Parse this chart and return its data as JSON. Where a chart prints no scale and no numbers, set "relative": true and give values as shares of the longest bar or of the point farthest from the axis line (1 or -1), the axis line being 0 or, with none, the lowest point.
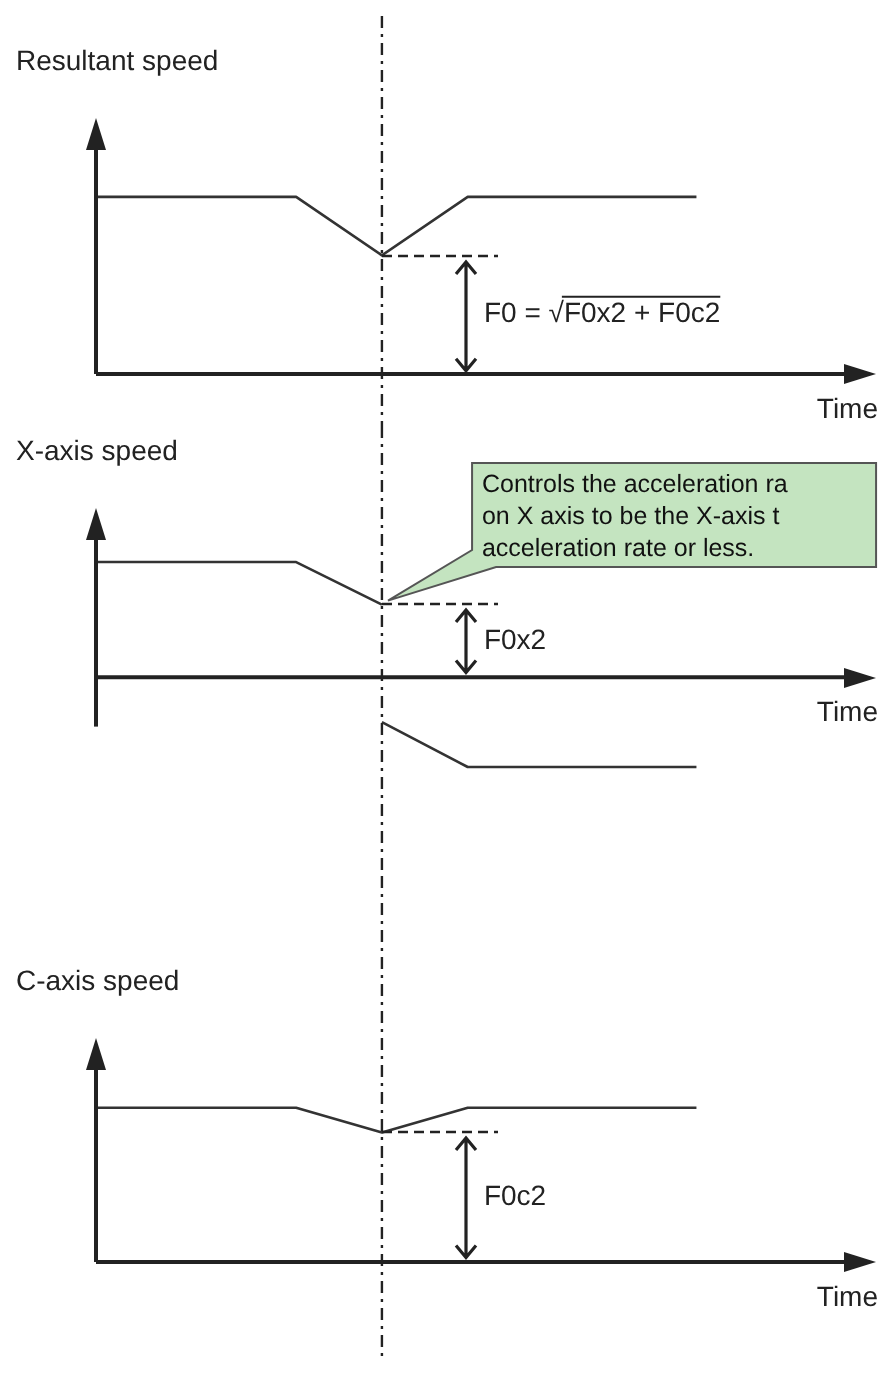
{
  "chart_data": [
    {
      "type": "line",
      "ylabel": "Resultant speed",
      "xlabel": "Time",
      "relative": true,
      "tick_labels": false,
      "categories": [
        null,
        null,
        null,
        null,
        null,
        null,
        null,
        null,
        null,
        null,
        null,
        null,
        null,
        null,
        null,
        null,
        null,
        null,
        null,
        null,
        null,
        null,
        null,
        null,
        null,
        null,
        null,
        null
      ],
      "series": [
        {
          "color": "#333333",
          "values": [
            1,
            null,
            null,
            null,
            null,
            null,
            null,
            1,
            null,
            null,
            0.67,
            null,
            null,
            1,
            null,
            null,
            null,
            null,
            null,
            null,
            null,
            1,
            null,
            null,
            null,
            null,
            null,
            null
          ]
        }
      ],
      "annotations": [
        "F0 = √F0x2 + F0c2"
      ]
    },
    {
      "type": "line",
      "ylabel": "X-axis speed",
      "xlabel": "Time",
      "relative": true,
      "tick_labels": false,
      "categories": [
        null,
        null,
        null,
        null,
        null,
        null,
        null,
        null,
        null,
        null,
        null,
        null,
        null,
        null,
        null,
        null,
        null,
        null,
        null,
        null,
        null,
        null,
        null,
        null,
        null,
        null,
        null,
        null
      ],
      "series": [
        {
          "color": "#333333",
          "values": [
            1,
            null,
            null,
            null,
            null,
            null,
            null,
            1,
            null,
            null,
            0.63,
            null,
            null,
            null,
            null,
            null,
            null,
            null,
            null,
            null,
            null,
            null,
            null,
            null,
            null,
            null,
            null,
            null
          ]
        },
        {
          "color": "#333333",
          "values": [
            null,
            null,
            null,
            null,
            null,
            null,
            null,
            null,
            null,
            null,
            -0.39,
            null,
            null,
            -0.78,
            null,
            null,
            null,
            null,
            null,
            null,
            null,
            -0.78,
            null,
            null,
            null,
            null,
            null,
            null
          ]
        }
      ],
      "annotations": [
        "F0x2",
        "Controls the acceleration ra\non X axis to be the X-axis t\nacceleration rate or less."
      ]
    },
    {
      "type": "line",
      "ylabel": "C-axis speed",
      "xlabel": "Time",
      "relative": true,
      "tick_labels": false,
      "categories": [
        null,
        null,
        null,
        null,
        null,
        null,
        null,
        null,
        null,
        null,
        null,
        null,
        null,
        null,
        null,
        null,
        null,
        null,
        null,
        null,
        null,
        null,
        null,
        null,
        null,
        null,
        null,
        null
      ],
      "series": [
        {
          "color": "#333333",
          "values": [
            1,
            null,
            null,
            null,
            null,
            null,
            null,
            1,
            null,
            null,
            0.84,
            null,
            null,
            1,
            null,
            null,
            null,
            null,
            null,
            null,
            null,
            1,
            null,
            null,
            null,
            null,
            null,
            null
          ]
        }
      ],
      "annotations": [
        "F0c2"
      ]
    }
  ]
}
